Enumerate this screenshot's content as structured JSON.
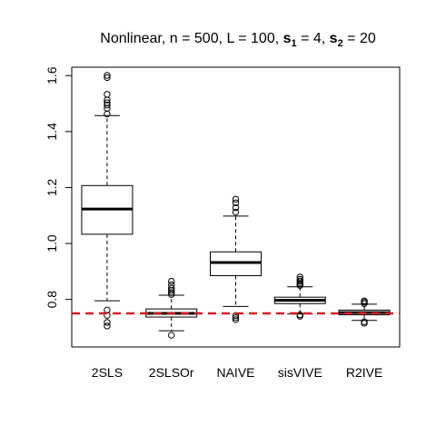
{
  "chart_data": {
    "type": "boxplot",
    "title": {
      "prefix": "Nonlinear, n = 500, L = 100, ",
      "s1_base": "s",
      "s1_sub": "1",
      "s1_eq": " = 4, ",
      "s2_base": "s",
      "s2_sub": "2",
      "s2_eq": " = 20"
    },
    "xlabel": "",
    "ylabel": "",
    "ylim": [
      0.63,
      1.63
    ],
    "y_ticks": [
      0.8,
      1.0,
      1.2,
      1.4,
      1.6
    ],
    "y_tick_labels": [
      "0.8",
      "1.0",
      "1.2",
      "1.4",
      "1.6"
    ],
    "categories": [
      "2SLS",
      "2SLSOr",
      "NAIVE",
      "sisVIVE",
      "R2IVE"
    ],
    "boxes": [
      {
        "name": "2SLS",
        "whisker_low": 0.795,
        "q1": 1.033,
        "median": 1.123,
        "q3": 1.207,
        "whisker_high": 1.457,
        "outliers": [
          0.705,
          0.718,
          0.743,
          0.762,
          1.463,
          1.483,
          1.495,
          1.503,
          1.513,
          1.533,
          1.593,
          1.601
        ]
      },
      {
        "name": "2SLSOr",
        "whisker_low": 0.688,
        "q1": 0.737,
        "median": 0.75,
        "q3": 0.766,
        "whisker_high": 0.815,
        "outliers": [
          0.672,
          0.818,
          0.825,
          0.832,
          0.84,
          0.852,
          0.865
        ]
      },
      {
        "name": "NAIVE",
        "whisker_low": 0.775,
        "q1": 0.885,
        "median": 0.932,
        "q3": 0.97,
        "whisker_high": 1.098,
        "outliers": [
          0.728,
          0.735,
          0.742,
          1.112,
          1.128,
          1.145,
          1.158
        ]
      },
      {
        "name": "sisVIVE",
        "whisker_low": 0.748,
        "q1": 0.785,
        "median": 0.797,
        "q3": 0.808,
        "whisker_high": 0.845,
        "outliers": [
          0.74,
          0.745,
          0.85,
          0.855,
          0.86,
          0.866,
          0.872,
          0.88
        ]
      },
      {
        "name": "R2IVE",
        "whisker_low": 0.725,
        "q1": 0.745,
        "median": 0.753,
        "q3": 0.762,
        "whisker_high": 0.783,
        "outliers": [
          0.715,
          0.72,
          0.785,
          0.79,
          0.795
        ]
      }
    ],
    "reference_line": {
      "value": 0.75,
      "color": "#e31a1c",
      "style": "dashed"
    },
    "grid": false,
    "colors": {
      "box_fill": "#ffffff",
      "stroke": "#000000"
    }
  }
}
